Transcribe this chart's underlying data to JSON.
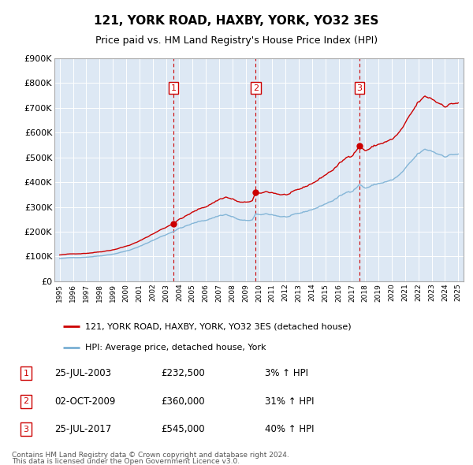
{
  "title": "121, YORK ROAD, HAXBY, YORK, YO32 3ES",
  "subtitle": "Price paid vs. HM Land Registry's House Price Index (HPI)",
  "sale_color": "#cc0000",
  "hpi_color": "#7ab0d4",
  "ylim": [
    0,
    900000
  ],
  "ytick_labels": [
    "£0",
    "£100K",
    "£200K",
    "£300K",
    "£400K",
    "£500K",
    "£600K",
    "£700K",
    "£800K",
    "£900K"
  ],
  "ytick_values": [
    0,
    100000,
    200000,
    300000,
    400000,
    500000,
    600000,
    700000,
    800000,
    900000
  ],
  "sale_dates_num": [
    2003.57,
    2009.75,
    2017.57
  ],
  "sale_prices": [
    232500,
    360000,
    545000
  ],
  "sale_labels": [
    "1",
    "2",
    "3"
  ],
  "legend_sale_label": "121, YORK ROAD, HAXBY, YORK, YO32 3ES (detached house)",
  "legend_hpi_label": "HPI: Average price, detached house, York",
  "sale_annotations": [
    {
      "label": "1",
      "date": "25-JUL-2003",
      "price": "£232,500",
      "pct": "3%",
      "direction": "↑"
    },
    {
      "label": "2",
      "date": "02-OCT-2009",
      "price": "£360,000",
      "pct": "31%",
      "direction": "↑"
    },
    {
      "label": "3",
      "date": "25-JUL-2017",
      "price": "£545,000",
      "pct": "40%",
      "direction": "↑"
    }
  ],
  "footer1": "Contains HM Land Registry data © Crown copyright and database right 2024.",
  "footer2": "This data is licensed under the Open Government Licence v3.0."
}
